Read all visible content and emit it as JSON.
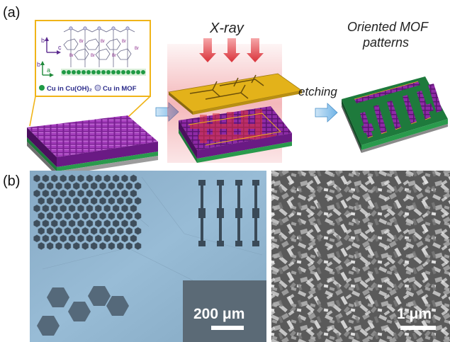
{
  "panel_a": {
    "label": "(a)",
    "xray_label": "X-ray",
    "etching_label": "etching",
    "result_label_line1": "Oriented MOF",
    "result_label_line2": "patterns",
    "inset": {
      "axis_b": "b",
      "axis_c": "c",
      "axis_a": "a",
      "legend_cu_hydroxide": "Cu in Cu(OH)₂",
      "legend_cu_mof": "Cu in MOF"
    },
    "colors": {
      "mof": "#8e2aa6",
      "substrate_green": "#1e7a3c",
      "gold_mask": "#e3b21a",
      "xray_red": "#e0323a",
      "arrow_blue": "#6fb3e6"
    }
  },
  "panel_b": {
    "label": "(b)",
    "left_scale_text": "200 μm",
    "right_scale_text": "1 μm",
    "colors": {
      "micrograph_blue": "#8fb4cf",
      "sem_gray": "#5e5e5e"
    }
  }
}
